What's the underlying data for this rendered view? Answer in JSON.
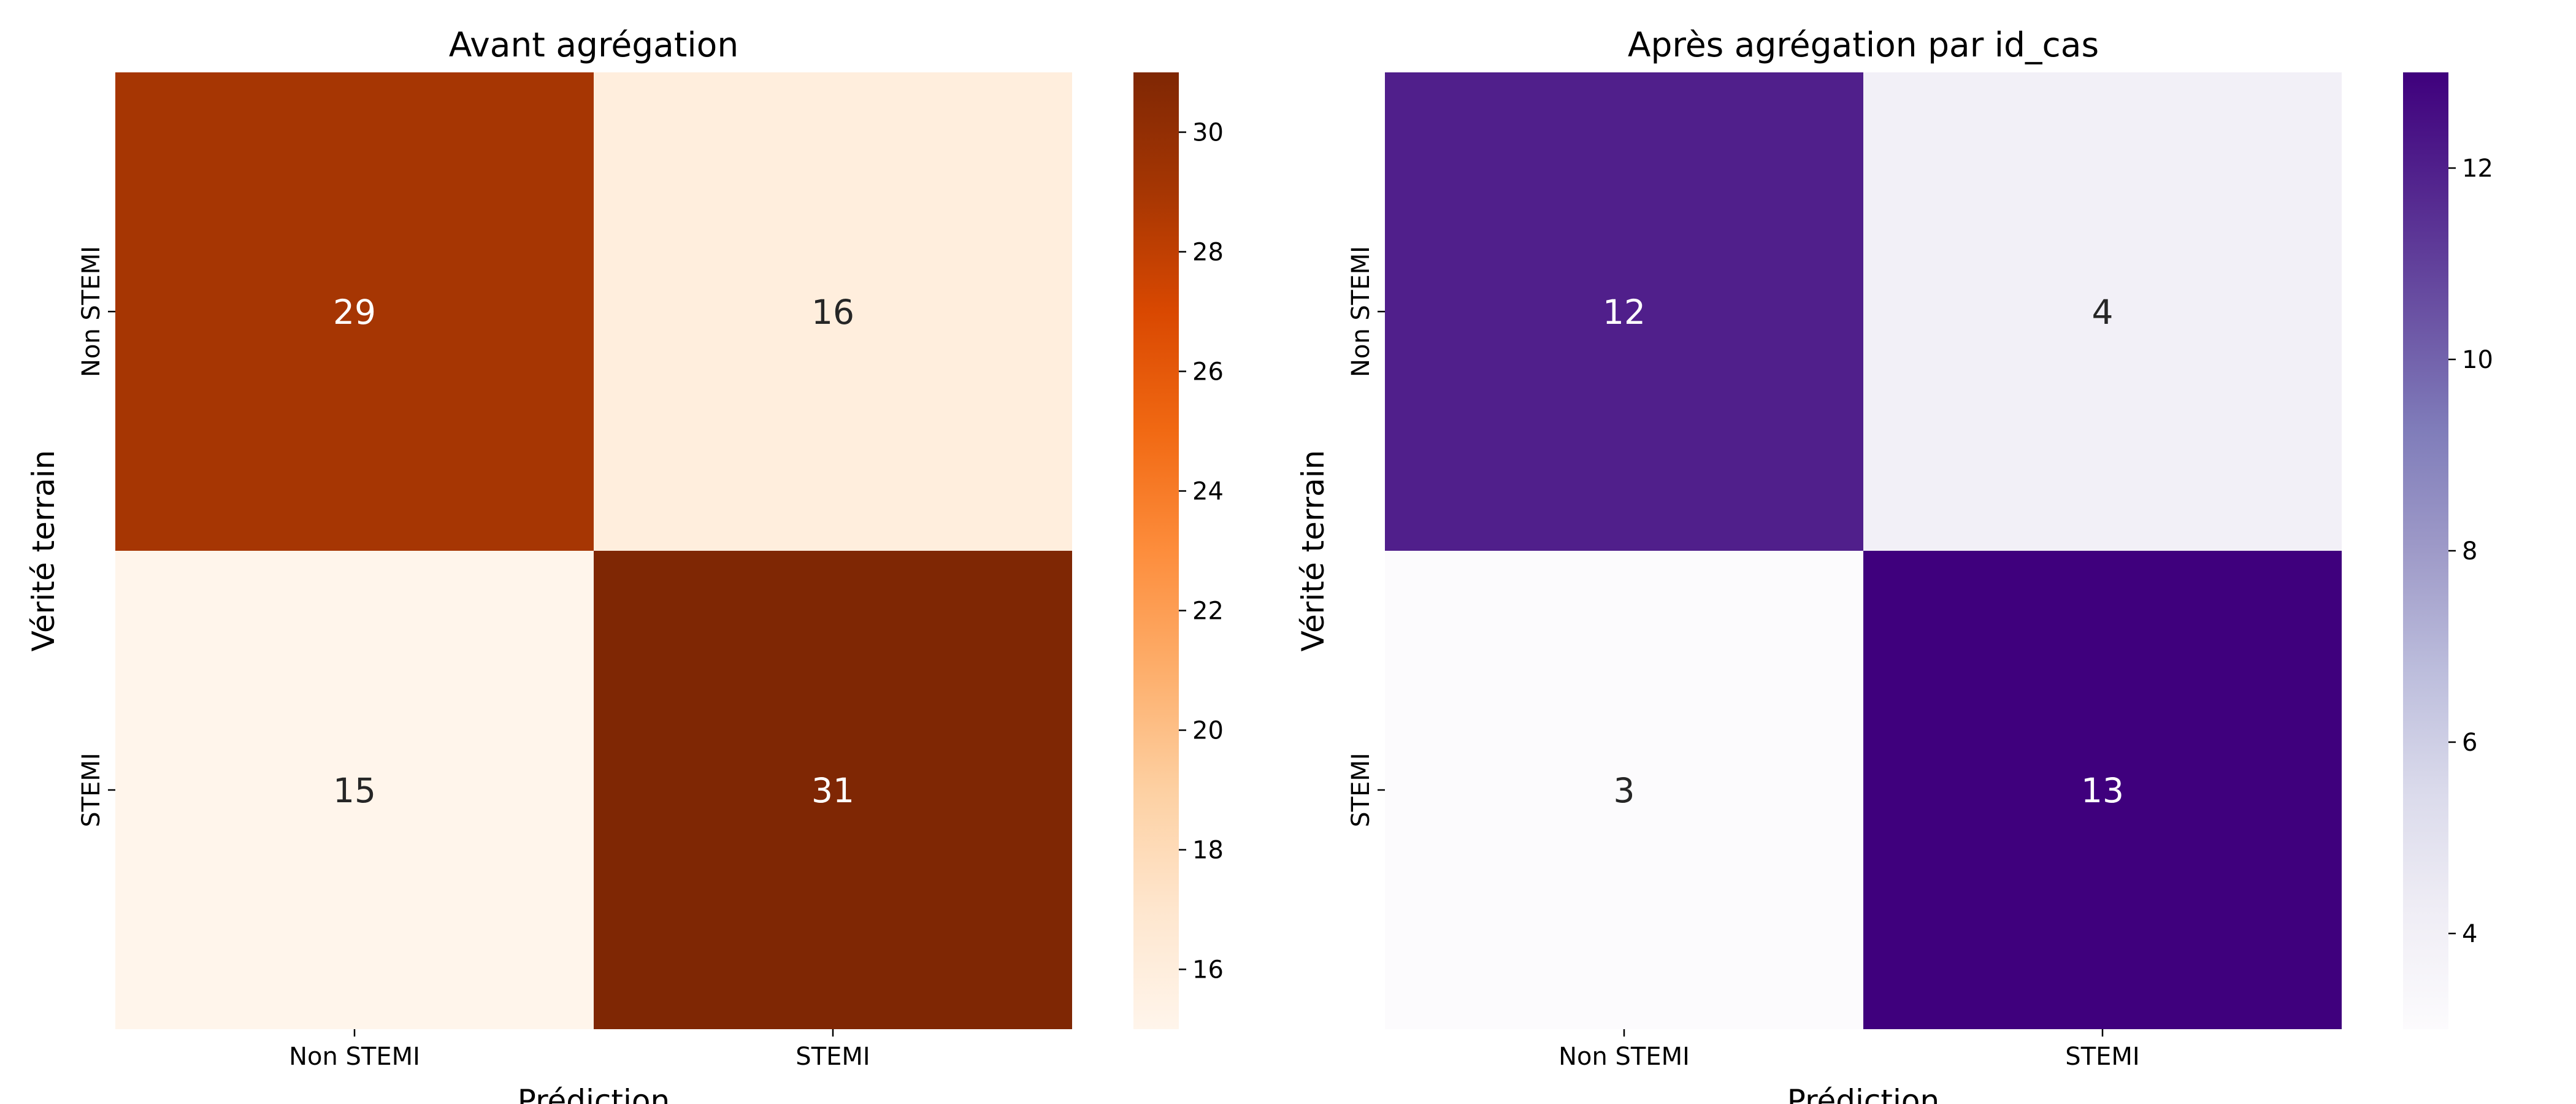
{
  "chart_data": [
    {
      "type": "heatmap",
      "title": "Avant agrégation",
      "xlabel": "Prédiction",
      "ylabel": "Vérité terrain",
      "x_categories": [
        "Non STEMI",
        "STEMI"
      ],
      "y_categories": [
        "Non STEMI",
        "STEMI"
      ],
      "values": [
        [
          29,
          16
        ],
        [
          15,
          31
        ]
      ],
      "colormap": "Oranges",
      "colorscale": {
        "min": 15,
        "max": 31,
        "colors": [
          "#fff5eb",
          "#fee6ce",
          "#fdd0a2",
          "#fdae6b",
          "#fd8d3c",
          "#f16913",
          "#d94801",
          "#a63603",
          "#7f2704"
        ]
      },
      "colorbar_ticks": [
        16,
        18,
        20,
        22,
        24,
        26,
        28,
        30
      ]
    },
    {
      "type": "heatmap",
      "title": "Après agrégation par id_cas",
      "xlabel": "Prédiction",
      "ylabel": "Vérité terrain",
      "x_categories": [
        "Non STEMI",
        "STEMI"
      ],
      "y_categories": [
        "Non STEMI",
        "STEMI"
      ],
      "values": [
        [
          12,
          4
        ],
        [
          3,
          13
        ]
      ],
      "colormap": "Purples",
      "colorscale": {
        "min": 3,
        "max": 13,
        "colors": [
          "#fcfbfd",
          "#efedf5",
          "#dadaeb",
          "#bcbddc",
          "#9e9ac8",
          "#807dba",
          "#6a51a3",
          "#54278f",
          "#3f007d"
        ]
      },
      "colorbar_ticks": [
        4,
        6,
        8,
        10,
        12
      ]
    }
  ]
}
